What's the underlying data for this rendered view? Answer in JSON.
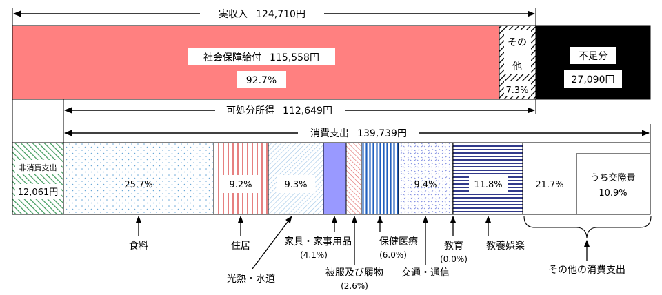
{
  "income": {
    "label": "実収入",
    "amount": "124,710円",
    "social_security": {
      "label": "社会保障給付",
      "amount": "115,558円",
      "pct": "92.7%"
    },
    "other": {
      "label_1": "その",
      "label_2": "他",
      "pct": "7.3%"
    },
    "deficit": {
      "label": "不足分",
      "amount": "27,090円"
    }
  },
  "disposable": {
    "label": "可処分所得",
    "amount": "112,649円"
  },
  "consumption": {
    "label": "消費支出",
    "amount": "139,739円"
  },
  "non_consumption": {
    "label": "非消費支出",
    "amount": "12,061円"
  },
  "segments": {
    "food": {
      "pct": "25.7%",
      "label": "食料"
    },
    "housing": {
      "pct": "9.2%",
      "label": "住居"
    },
    "utilities": {
      "pct": "9.3%",
      "label": "光熱・水道"
    },
    "furniture": {
      "label": "家具・家事用品",
      "pct": "(4.1%)"
    },
    "clothing": {
      "label": "被服及び履物",
      "pct": "(2.6%)"
    },
    "health": {
      "label": "保健医療",
      "pct": "(6.0%)"
    },
    "transport": {
      "pct": "9.4%",
      "label": "交通・通信"
    },
    "education": {
      "label": "教育",
      "pct": "(0.0%)"
    },
    "recreation": {
      "pct": "11.8%",
      "label": "教養娯楽"
    },
    "other": {
      "pct": "21.7%",
      "label": "その他の消費支出"
    },
    "social_exp": {
      "label": "うち交際費",
      "pct": "10.9%"
    }
  },
  "colors": {
    "social_security": "#ff8080",
    "deficit": "#000000",
    "furniture": "#9999ff",
    "health_stripe": "#1f5fbf",
    "recreation_stripe": "#1a237e",
    "housing_stripe": "#e06060"
  }
}
